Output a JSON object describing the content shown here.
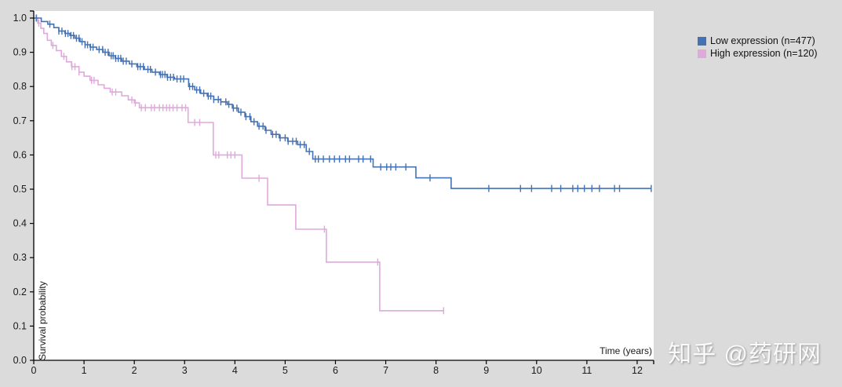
{
  "figure": {
    "ylabel": "Survival probability",
    "xlabel": "Time (years)",
    "watermark": "知乎 @药研网"
  },
  "legend": {
    "items": [
      {
        "label": "Low expression (n=477)",
        "color": "#4472b4"
      },
      {
        "label": "High expression (n=120)",
        "color": "#e0a9dc"
      }
    ]
  },
  "chart_data": {
    "type": "line",
    "subtype": "kaplan_meier_step",
    "title": "",
    "xlabel": "Time (years)",
    "ylabel": "Survival probability",
    "xlim": [
      0,
      12.33
    ],
    "ylim": [
      0.0,
      1.0
    ],
    "grid": false,
    "legend_position": "outside-top-right",
    "x_ticks": [
      "0",
      "1",
      "2",
      "3",
      "4",
      "5",
      "6",
      "7",
      "8",
      "9",
      "10",
      "11",
      "12"
    ],
    "y_ticks": [
      "0.0",
      "0.1",
      "0.2",
      "0.3",
      "0.4",
      "0.5",
      "0.6",
      "0.7",
      "0.8",
      "0.9",
      "1.0"
    ],
    "series": [
      {
        "name": "Low expression (n=477)",
        "color": "#4472b4",
        "end_time": 12.28,
        "steps": [
          [
            0,
            1.0
          ],
          [
            0.15,
            0.99
          ],
          [
            0.28,
            0.982
          ],
          [
            0.4,
            0.972
          ],
          [
            0.5,
            0.962
          ],
          [
            0.62,
            0.955
          ],
          [
            0.72,
            0.949
          ],
          [
            0.82,
            0.941
          ],
          [
            0.92,
            0.931
          ],
          [
            1.02,
            0.922
          ],
          [
            1.12,
            0.915
          ],
          [
            1.25,
            0.908
          ],
          [
            1.38,
            0.9
          ],
          [
            1.5,
            0.89
          ],
          [
            1.62,
            0.882
          ],
          [
            1.75,
            0.874
          ],
          [
            1.9,
            0.866
          ],
          [
            2.05,
            0.858
          ],
          [
            2.2,
            0.85
          ],
          [
            2.35,
            0.842
          ],
          [
            2.5,
            0.835
          ],
          [
            2.65,
            0.827
          ],
          [
            2.8,
            0.822
          ],
          [
            3.08,
            0.8
          ],
          [
            3.2,
            0.79
          ],
          [
            3.32,
            0.78
          ],
          [
            3.45,
            0.772
          ],
          [
            3.58,
            0.762
          ],
          [
            3.72,
            0.755
          ],
          [
            3.85,
            0.748
          ],
          [
            3.95,
            0.737
          ],
          [
            4.07,
            0.725
          ],
          [
            4.2,
            0.712
          ],
          [
            4.32,
            0.697
          ],
          [
            4.45,
            0.684
          ],
          [
            4.6,
            0.672
          ],
          [
            4.72,
            0.66
          ],
          [
            4.88,
            0.65
          ],
          [
            5.05,
            0.64
          ],
          [
            5.25,
            0.63
          ],
          [
            5.42,
            0.61
          ],
          [
            5.55,
            0.588
          ],
          [
            6.75,
            0.565
          ],
          [
            7.6,
            0.533
          ],
          [
            8.3,
            0.502
          ]
        ],
        "censor_times": [
          0.05,
          0.32,
          0.5,
          0.56,
          0.63,
          0.68,
          0.74,
          0.79,
          0.85,
          0.9,
          0.96,
          1.02,
          1.07,
          1.13,
          1.18,
          1.3,
          1.37,
          1.42,
          1.48,
          1.54,
          1.58,
          1.63,
          1.68,
          1.73,
          1.78,
          1.84,
          1.95,
          2.07,
          2.12,
          2.18,
          2.27,
          2.32,
          2.42,
          2.52,
          2.56,
          2.61,
          2.66,
          2.72,
          2.78,
          2.85,
          2.92,
          2.98,
          3.1,
          3.16,
          3.24,
          3.3,
          3.38,
          3.47,
          3.52,
          3.58,
          3.67,
          3.72,
          3.82,
          3.88,
          3.97,
          4.04,
          4.12,
          4.22,
          4.3,
          4.38,
          4.48,
          4.56,
          4.62,
          4.75,
          4.82,
          4.9,
          5.0,
          5.06,
          5.15,
          5.22,
          5.3,
          5.38,
          5.48,
          5.6,
          5.66,
          5.76,
          5.88,
          5.98,
          6.08,
          6.2,
          6.28,
          6.46,
          6.55,
          6.7,
          6.9,
          7.02,
          7.1,
          7.2,
          7.4,
          7.88,
          9.05,
          9.68,
          9.9,
          10.3,
          10.48,
          10.72,
          10.82,
          10.95,
          11.1,
          11.25,
          11.55,
          11.65,
          12.28
        ]
      },
      {
        "name": "High expression (n=120)",
        "color": "#e0a9dc",
        "end_time": 8.15,
        "steps": [
          [
            0,
            1.0
          ],
          [
            0.08,
            0.985
          ],
          [
            0.14,
            0.97
          ],
          [
            0.2,
            0.955
          ],
          [
            0.27,
            0.935
          ],
          [
            0.35,
            0.92
          ],
          [
            0.45,
            0.905
          ],
          [
            0.55,
            0.888
          ],
          [
            0.65,
            0.872
          ],
          [
            0.75,
            0.858
          ],
          [
            0.9,
            0.842
          ],
          [
            1.0,
            0.83
          ],
          [
            1.12,
            0.818
          ],
          [
            1.28,
            0.805
          ],
          [
            1.4,
            0.795
          ],
          [
            1.52,
            0.784
          ],
          [
            1.75,
            0.773
          ],
          [
            1.88,
            0.761
          ],
          [
            2.0,
            0.752
          ],
          [
            2.1,
            0.738
          ],
          [
            3.07,
            0.695
          ],
          [
            3.57,
            0.6
          ],
          [
            4.14,
            0.532
          ],
          [
            4.65,
            0.454
          ],
          [
            5.21,
            0.383
          ],
          [
            5.82,
            0.287
          ],
          [
            6.88,
            0.145
          ]
        ],
        "censor_times": [
          0.06,
          0.1,
          0.38,
          0.6,
          0.76,
          0.82,
          0.9,
          1.15,
          1.2,
          1.56,
          1.63,
          1.95,
          2.02,
          2.14,
          2.22,
          2.34,
          2.4,
          2.5,
          2.57,
          2.64,
          2.7,
          2.77,
          2.85,
          2.95,
          3.02,
          3.2,
          3.3,
          3.62,
          3.68,
          3.85,
          3.92,
          4.0,
          4.48,
          5.78,
          6.84,
          8.15
        ]
      }
    ]
  }
}
